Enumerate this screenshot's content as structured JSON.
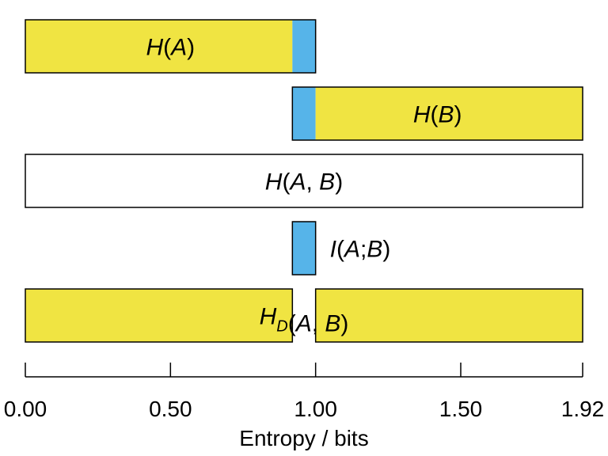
{
  "chart_data": {
    "type": "bar",
    "x_axis": {
      "label": "Entropy / bits",
      "min": 0,
      "max": 1.92,
      "ticks": [
        {
          "value": 0.0,
          "label": "0.00"
        },
        {
          "value": 0.5,
          "label": "0.50"
        },
        {
          "value": 1.0,
          "label": "1.00"
        },
        {
          "value": 1.5,
          "label": "1.50"
        },
        {
          "value": 1.92,
          "label": "1.92"
        }
      ]
    },
    "bars": [
      {
        "segments": [
          {
            "start": 0.0,
            "end": 0.92,
            "color": "#F0E442"
          },
          {
            "start": 0.92,
            "end": 1.0,
            "color": "#56B4E9"
          }
        ],
        "label": {
          "main": "H",
          "sub": "",
          "args": "(A)",
          "italic_args": true,
          "position": 0.5
        }
      },
      {
        "segments": [
          {
            "start": 0.92,
            "end": 1.0,
            "color": "#56B4E9"
          },
          {
            "start": 1.0,
            "end": 1.92,
            "color": "#F0E442"
          }
        ],
        "label": {
          "main": "H",
          "sub": "",
          "args": "(B)",
          "position": 1.42
        }
      },
      {
        "segments": [
          {
            "start": 0.0,
            "end": 1.92,
            "color": "#FFFFFF"
          }
        ],
        "label": {
          "main": "H",
          "sub": "",
          "args": "(A, B)",
          "position": 0.96
        }
      },
      {
        "segments": [
          {
            "start": 0.92,
            "end": 1.0,
            "color": "#56B4E9"
          }
        ],
        "label": {
          "main": "I",
          "sub": "",
          "args": "(A;B)",
          "position": 1.18,
          "anchor": "start_after_bar"
        }
      },
      {
        "segments": [
          {
            "start": 0.0,
            "end": 0.92,
            "color": "#F0E442"
          },
          {
            "start": 1.0,
            "end": 1.92,
            "color": "#F0E442"
          }
        ],
        "label": {
          "main": "H",
          "sub": "D",
          "args": "(A, B)",
          "position": 0.96
        }
      }
    ]
  }
}
